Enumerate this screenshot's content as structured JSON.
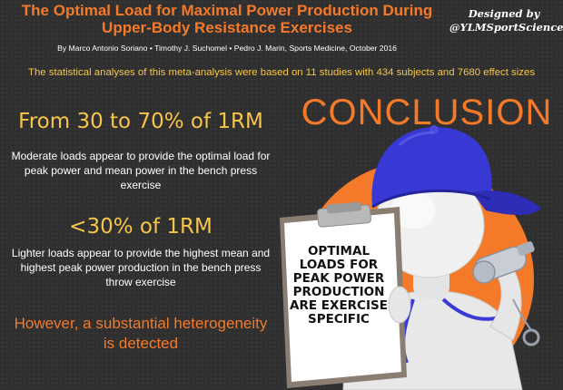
{
  "header": {
    "title_line1": "The Optimal Load for Maximal Power Production During",
    "title_line2": "Upper-Body Resistance Exercises",
    "authors": "By Marco Antonio Soriano  •  Timothy J. Suchomel  •  Pedro J. Marin, Sports Medicine, October 2016",
    "designed_by_line1": "Designed by",
    "designed_by_line2": "@YLMSportScience"
  },
  "stats_line": "The statistical analyses of this meta-analysis were based on 11 studies with 434 subjects and 7680 effect sizes",
  "findings": [
    {
      "heading": "From 30 to 70% of 1RM",
      "text": "Moderate loads appear to provide the optimal load for peak power and mean power in the bench press exercise"
    },
    {
      "heading": "<30% of 1RM",
      "text": "Lighter loads appear to provide the highest mean and highest peak power production in the bench press throw exercise"
    }
  ],
  "heterogeneity": "However, a substantial heterogeneity is detected",
  "conclusion": {
    "label": "CONCLUSION",
    "board_text": "Optimal loads for peak power production are exercise specific"
  },
  "colors": {
    "orange": "#f47a2a",
    "yellow": "#f6c549",
    "cap_blue": "#3a3ad6",
    "background": "#2f2f2f"
  }
}
